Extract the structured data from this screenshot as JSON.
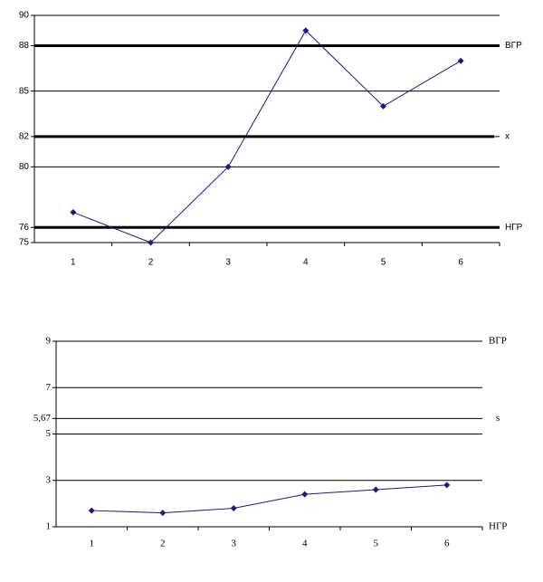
{
  "chart_data": [
    {
      "type": "line",
      "categories": [
        "1",
        "2",
        "3",
        "4",
        "5",
        "6"
      ],
      "series": [
        {
          "color": "#1a1a80",
          "values": [
            77,
            75,
            80,
            89,
            84,
            87
          ]
        }
      ],
      "ylim": [
        75,
        90
      ],
      "yticks": [
        75,
        76,
        80,
        82,
        85,
        88,
        90
      ],
      "grid": true,
      "reference_lines": [
        {
          "name": "ВГР",
          "value": 88
        },
        {
          "name": "x",
          "value": 82
        },
        {
          "name": "НГР",
          "value": 76
        }
      ]
    },
    {
      "type": "line",
      "categories": [
        "1",
        "2",
        "3",
        "4",
        "5",
        "6"
      ],
      "series": [
        {
          "color": "#1a1a80",
          "values": [
            1.7,
            1.6,
            1.8,
            2.4,
            2.6,
            2.8
          ]
        }
      ],
      "ylim": [
        1,
        9
      ],
      "yticks": [
        1,
        3,
        5,
        {
          "value": 5.67,
          "label": "5,67"
        },
        7,
        9
      ],
      "grid": true,
      "reference_lines": [
        {
          "name": "ВГР",
          "value": 9
        },
        {
          "name": "s",
          "value": 5.67
        },
        {
          "name": "НГР",
          "value": 1
        }
      ]
    }
  ]
}
